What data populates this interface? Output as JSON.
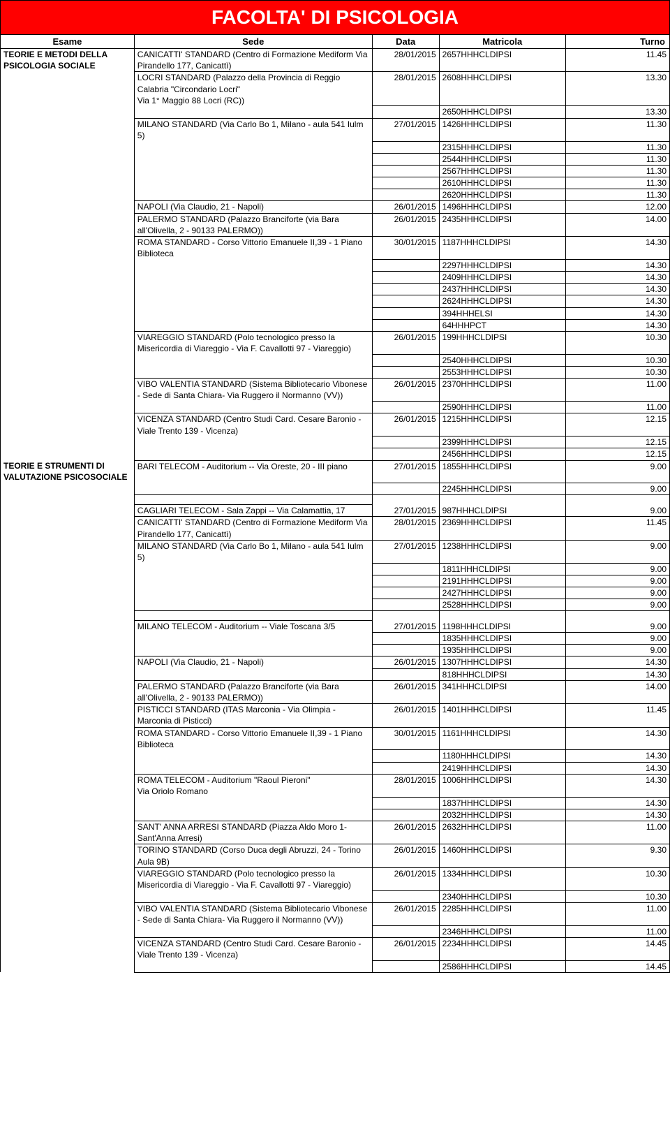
{
  "title": "FACOLTA' DI PSICOLOGIA",
  "columns": {
    "esame": "Esame",
    "sede": "Sede",
    "data": "Data",
    "matricola": "Matricola",
    "turno": "Turno"
  },
  "exams": [
    {
      "name": "TEORIE E METODI DELLA PSICOLOGIA SOCIALE",
      "venues": [
        {
          "sede": "CANICATTI' STANDARD (Centro di Formazione Mediform Via Pirandello 177, Canicattì)",
          "rows": [
            [
              "28/01/2015",
              "2657HHHCLDIPSI",
              "11.45"
            ]
          ]
        },
        {
          "sede": "LOCRI STANDARD (Palazzo della Provincia di Reggio Calabria \"Circondario Locri\"\nVia 1° Maggio 88 Locri (RC))",
          "rows": [
            [
              "28/01/2015",
              "2608HHHCLDIPSI",
              "13.30"
            ],
            [
              "",
              "2650HHHCLDIPSI",
              "13.30"
            ]
          ]
        },
        {
          "sede": "MILANO STANDARD (Via Carlo Bo 1, Milano - aula 541 Iulm 5)",
          "rows": [
            [
              "27/01/2015",
              "1426HHHCLDIPSI",
              "11.30"
            ],
            [
              "",
              "2315HHHCLDIPSI",
              "11.30"
            ],
            [
              "",
              "2544HHHCLDIPSI",
              "11.30"
            ],
            [
              "",
              "2567HHHCLDIPSI",
              "11.30"
            ],
            [
              "",
              "2610HHHCLDIPSI",
              "11.30"
            ],
            [
              "",
              "2620HHHCLDIPSI",
              "11.30"
            ]
          ]
        },
        {
          "sede": "NAPOLI (Via Claudio, 21 - Napoli)",
          "rows": [
            [
              "26/01/2015",
              "1496HHHCLDIPSI",
              "12.00"
            ]
          ]
        },
        {
          "sede": "PALERMO STANDARD (Palazzo Branciforte (via Bara all'Olivella, 2  - 90133 PALERMO))",
          "rows": [
            [
              "26/01/2015",
              "2435HHHCLDIPSI",
              "14.00"
            ]
          ]
        },
        {
          "sede": "ROMA STANDARD - Corso Vittorio Emanuele II,39 - 1 Piano Biblioteca",
          "rows": [
            [
              "30/01/2015",
              "1187HHHCLDIPSI",
              "14.30"
            ],
            [
              "",
              "2297HHHCLDIPSI",
              "14.30"
            ],
            [
              "",
              "2409HHHCLDIPSI",
              "14.30"
            ],
            [
              "",
              "2437HHHCLDIPSI",
              "14.30"
            ],
            [
              "",
              "2624HHHCLDIPSI",
              "14.30"
            ],
            [
              "",
              "394HHHELSI",
              "14.30"
            ],
            [
              "",
              "64HHHPCT",
              "14.30"
            ]
          ]
        },
        {
          "sede": "VIAREGGIO STANDARD (Polo tecnologico presso la Misericordia di Viareggio - Via F. Cavallotti 97 - Viareggio)",
          "rows": [
            [
              "26/01/2015",
              "199HHHCLDIPSI",
              "10.30"
            ],
            [
              "",
              "2540HHHCLDIPSI",
              "10.30"
            ],
            [
              "",
              "2553HHHCLDIPSI",
              "10.30"
            ]
          ]
        },
        {
          "sede": "VIBO VALENTIA STANDARD (Sistema Bibliotecario Vibonese - Sede di Santa Chiara- Via Ruggero il Normanno (VV))",
          "rows": [
            [
              "26/01/2015",
              "2370HHHCLDIPSI",
              "11.00"
            ],
            [
              "",
              "2590HHHCLDIPSI",
              "11.00"
            ]
          ]
        },
        {
          "sede": "VICENZA STANDARD (Centro Studi Card. Cesare Baronio - Viale Trento 139 - Vicenza)",
          "rows": [
            [
              "26/01/2015",
              "1215HHHCLDIPSI",
              "12.15"
            ],
            [
              "",
              "2399HHHCLDIPSI",
              "12.15"
            ],
            [
              "",
              "2456HHHCLDIPSI",
              "12.15"
            ]
          ]
        }
      ]
    },
    {
      "name": "TEORIE E STRUMENTI DI VALUTAZIONE PSICOSOCIALE",
      "venues": [
        {
          "sede": "BARI TELECOM - Auditorium -- Via Oreste, 20 - III piano",
          "rows": [
            [
              "27/01/2015",
              "1855HHHCLDIPSI",
              "9.00"
            ],
            [
              "",
              "2245HHHCLDIPSI",
              "9.00"
            ]
          ],
          "gapAfter": true
        },
        {
          "sede": "CAGLIARI TELECOM - Sala Zappi -- Via Calamattia, 17",
          "rows": [
            [
              "27/01/2015",
              "987HHHCLDIPSI",
              "9.00"
            ]
          ]
        },
        {
          "sede": "CANICATTI' STANDARD (Centro di Formazione Mediform Via Pirandello 177, Canicattì)",
          "rows": [
            [
              "28/01/2015",
              "2369HHHCLDIPSI",
              "11.45"
            ]
          ]
        },
        {
          "sede": "MILANO STANDARD (Via Carlo Bo 1, Milano - aula 541 Iulm 5)",
          "rows": [
            [
              "27/01/2015",
              "1238HHHCLDIPSI",
              "9.00"
            ],
            [
              "",
              "1811HHHCLDIPSI",
              "9.00"
            ],
            [
              "",
              "2191HHHCLDIPSI",
              "9.00"
            ],
            [
              "",
              "2427HHHCLDIPSI",
              "9.00"
            ],
            [
              "",
              "2528HHHCLDIPSI",
              "9.00"
            ]
          ],
          "gapAfter": true
        },
        {
          "sede": "MILANO TELECOM - Auditorium -- Viale Toscana 3/5",
          "rows": [
            [
              "27/01/2015",
              "1198HHHCLDIPSI",
              "9.00"
            ],
            [
              "",
              "1835HHHCLDIPSI",
              "9.00"
            ],
            [
              "",
              "1935HHHCLDIPSI",
              "9.00"
            ]
          ]
        },
        {
          "sede": "NAPOLI (Via Claudio, 21 - Napoli)",
          "rows": [
            [
              "26/01/2015",
              "1307HHHCLDIPSI",
              "14.30"
            ],
            [
              "",
              "818HHHCLDIPSI",
              "14.30"
            ]
          ]
        },
        {
          "sede": "PALERMO STANDARD (Palazzo Branciforte (via Bara all'Olivella, 2  - 90133 PALERMO))",
          "rows": [
            [
              "26/01/2015",
              "341HHHCLDIPSI",
              "14.00"
            ]
          ]
        },
        {
          "sede": "PISTICCI STANDARD (ITAS Marconia - Via Olimpia - Marconia di Pisticci)",
          "rows": [
            [
              "26/01/2015",
              "1401HHHCLDIPSI",
              "11.45"
            ]
          ]
        },
        {
          "sede": "ROMA STANDARD - Corso Vittorio Emanuele II,39 - 1 Piano Biblioteca",
          "rows": [
            [
              "30/01/2015",
              "1161HHHCLDIPSI",
              "14.30"
            ],
            [
              "",
              "1180HHHCLDIPSI",
              "14.30"
            ],
            [
              "",
              "2419HHHCLDIPSI",
              "14.30"
            ]
          ]
        },
        {
          "sede": "ROMA TELECOM - Auditorium \"Raoul Pieroni\"\nVia Oriolo Romano",
          "rows": [
            [
              "28/01/2015",
              "1006HHHCLDIPSI",
              "14.30"
            ],
            [
              "",
              "1837HHHCLDIPSI",
              "14.30"
            ],
            [
              "",
              "2032HHHCLDIPSI",
              "14.30"
            ]
          ]
        },
        {
          "sede": "SANT' ANNA ARRESI STANDARD (Piazza Aldo Moro 1- Sant'Anna Arresi)",
          "rows": [
            [
              "26/01/2015",
              "2632HHHCLDIPSI",
              "11.00"
            ]
          ]
        },
        {
          "sede": "TORINO STANDARD (Corso Duca degli Abruzzi, 24 - Torino Aula 9B)",
          "rows": [
            [
              "26/01/2015",
              "1460HHHCLDIPSI",
              "9.30"
            ]
          ]
        },
        {
          "sede": "VIAREGGIO STANDARD (Polo tecnologico presso la Misericordia di Viareggio - Via F. Cavallotti 97 - Viareggio)",
          "rows": [
            [
              "26/01/2015",
              "1334HHHCLDIPSI",
              "10.30"
            ],
            [
              "",
              "2340HHHCLDIPSI",
              "10.30"
            ]
          ]
        },
        {
          "sede": "VIBO VALENTIA STANDARD (Sistema Bibliotecario Vibonese - Sede di Santa Chiara- Via Ruggero il Normanno (VV))",
          "rows": [
            [
              "26/01/2015",
              "2285HHHCLDIPSI",
              "11.00"
            ],
            [
              "",
              "2346HHHCLDIPSI",
              "11.00"
            ]
          ]
        },
        {
          "sede": "VICENZA STANDARD (Centro Studi Card. Cesare Baronio - Viale Trento 139 - Vicenza)",
          "rows": [
            [
              "26/01/2015",
              "2234HHHCLDIPSI",
              "14.45"
            ],
            [
              "",
              "2586HHHCLDIPSI",
              "14.45"
            ]
          ]
        }
      ]
    }
  ]
}
